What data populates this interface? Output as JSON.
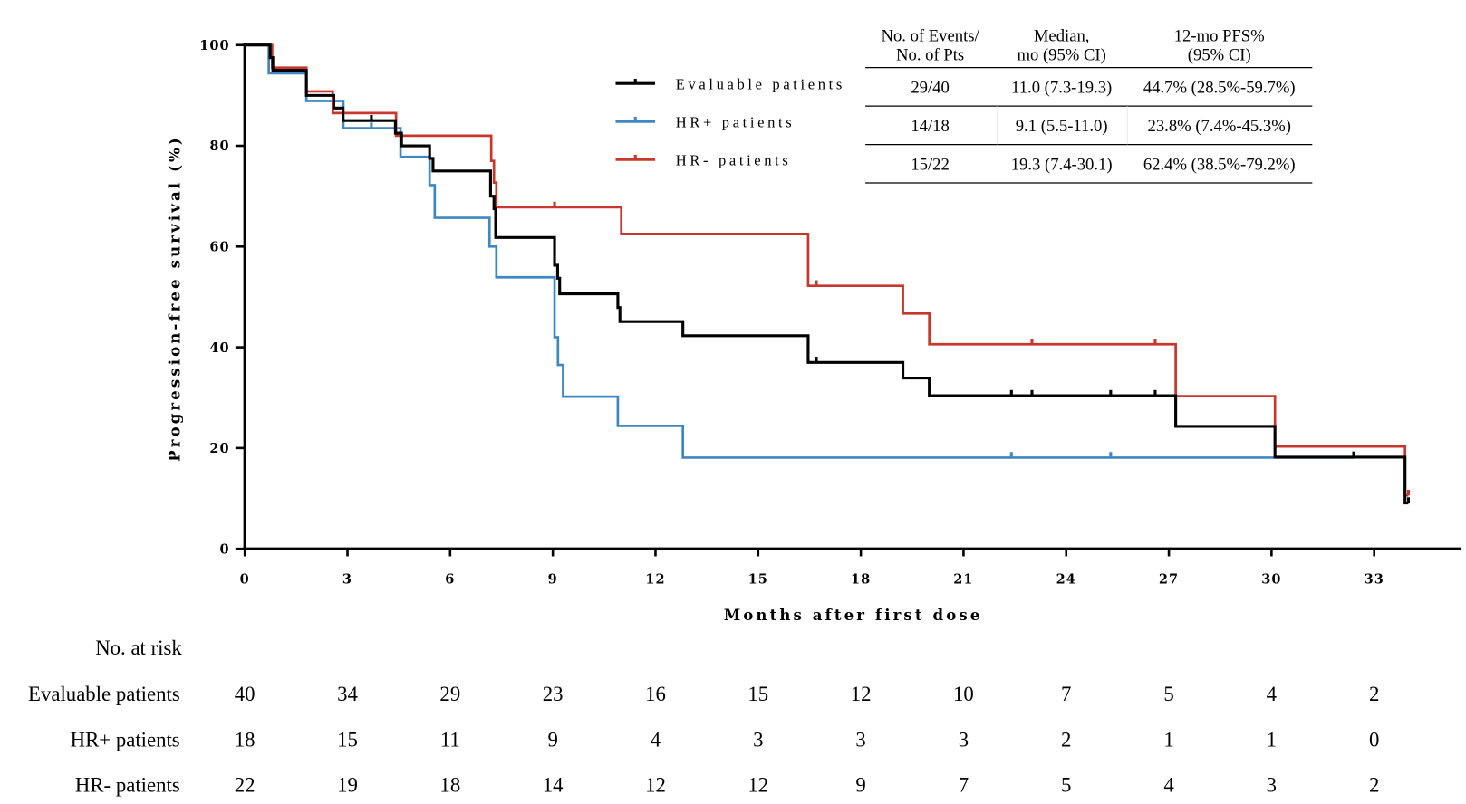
{
  "chart_data": {
    "type": "line",
    "subtype": "kaplan-meier-step",
    "xlabel": "Months after first dose",
    "ylabel": "Progression-free survival (%)",
    "xlim": [
      0,
      34
    ],
    "ylim": [
      0,
      100
    ],
    "xticks": [
      0,
      3,
      6,
      9,
      12,
      15,
      18,
      21,
      24,
      27,
      30,
      33
    ],
    "yticks": [
      0,
      20,
      40,
      60,
      80,
      100
    ],
    "grid": false,
    "legend_position": "top-center",
    "series": [
      {
        "name": "Evaluable patients",
        "color": "#000000",
        "steps": [
          [
            0,
            100
          ],
          [
            0.74,
            97.5
          ],
          [
            0.82,
            95
          ],
          [
            1.8,
            90
          ],
          [
            2.6,
            87.5
          ],
          [
            2.87,
            85
          ],
          [
            4.4,
            82.5
          ],
          [
            4.58,
            80
          ],
          [
            5.4,
            77.5
          ],
          [
            5.5,
            75
          ],
          [
            7.18,
            70
          ],
          [
            7.28,
            67.5
          ],
          [
            7.33,
            61.8
          ],
          [
            9.05,
            56.3
          ],
          [
            9.14,
            53.7
          ],
          [
            9.2,
            50.6
          ],
          [
            10.9,
            47.9
          ],
          [
            10.96,
            45.1
          ],
          [
            12.8,
            42.3
          ],
          [
            16.46,
            37.0
          ],
          [
            19.23,
            33.9
          ],
          [
            20.0,
            30.4
          ],
          [
            27.2,
            24.3
          ],
          [
            30.1,
            18.2
          ],
          [
            33.9,
            9.1
          ]
        ],
        "end": 34.0,
        "censored": [
          [
            3.7,
            85
          ],
          [
            16.7,
            37.0
          ],
          [
            22.4,
            30.4
          ],
          [
            23.0,
            30.4
          ],
          [
            25.3,
            30.4
          ],
          [
            26.6,
            30.4
          ],
          [
            32.4,
            18.2
          ],
          [
            34.0,
            9.1
          ]
        ]
      },
      {
        "name": "HR+ patients",
        "color": "#3f87c0",
        "steps": [
          [
            0,
            100
          ],
          [
            0.7,
            94.4
          ],
          [
            1.8,
            88.9
          ],
          [
            2.88,
            83.5
          ],
          [
            4.55,
            77.8
          ],
          [
            5.4,
            72.2
          ],
          [
            5.55,
            65.7
          ],
          [
            7.15,
            60.0
          ],
          [
            7.35,
            53.9
          ],
          [
            9.05,
            42.0
          ],
          [
            9.15,
            36.5
          ],
          [
            9.3,
            30.2
          ],
          [
            10.9,
            24.4
          ],
          [
            12.8,
            18.1
          ]
        ],
        "end": 32.4,
        "censored": [
          [
            3.7,
            83.5
          ],
          [
            22.4,
            18.1
          ],
          [
            25.3,
            18.1
          ]
        ]
      },
      {
        "name": "HR- patients",
        "color": "#c8372d",
        "steps": [
          [
            0,
            100
          ],
          [
            0.8,
            95.5
          ],
          [
            1.8,
            90.8
          ],
          [
            2.57,
            86.5
          ],
          [
            4.42,
            82.0
          ],
          [
            7.2,
            77.0
          ],
          [
            7.28,
            72.7
          ],
          [
            7.35,
            67.8
          ],
          [
            11.0,
            62.5
          ],
          [
            16.46,
            52.2
          ],
          [
            19.23,
            46.7
          ],
          [
            20.0,
            40.6
          ],
          [
            27.2,
            30.3
          ],
          [
            30.1,
            20.3
          ],
          [
            33.9,
            10.6
          ]
        ],
        "end": 34.0,
        "censored": [
          [
            9.05,
            67.8
          ],
          [
            16.7,
            52.2
          ],
          [
            23.0,
            40.6
          ],
          [
            26.6,
            40.6
          ],
          [
            34.0,
            10.6
          ]
        ]
      }
    ]
  },
  "summary_table": {
    "headers": [
      [
        "No. of Events/",
        "No. of Pts"
      ],
      [
        "Median,",
        "mo (95% CI)"
      ],
      [
        "12-mo PFS%",
        "(95% CI)"
      ]
    ],
    "rows": [
      [
        "29/40",
        "11.0 (7.3-19.3)",
        "44.7% (28.5%-59.7%)"
      ],
      [
        "14/18",
        "9.1 (5.5-11.0)",
        "23.8% (7.4%-45.3%)"
      ],
      [
        "15/22",
        "19.3 (7.4-30.1)",
        "62.4% (38.5%-79.2%)"
      ]
    ]
  },
  "risk_table": {
    "title": "No. at risk",
    "rows": [
      {
        "label": "Evaluable patients",
        "values": [
          "40",
          "34",
          "29",
          "23",
          "16",
          "15",
          "12",
          "10",
          "7",
          "5",
          "4",
          "2"
        ]
      },
      {
        "label": "HR+ patients",
        "values": [
          "18",
          "15",
          "11",
          "9",
          "4",
          "3",
          "3",
          "3",
          "2",
          "1",
          "1",
          "0"
        ]
      },
      {
        "label": "HR- patients",
        "values": [
          "22",
          "19",
          "18",
          "14",
          "12",
          "12",
          "9",
          "7",
          "5",
          "4",
          "3",
          "2"
        ]
      }
    ]
  }
}
